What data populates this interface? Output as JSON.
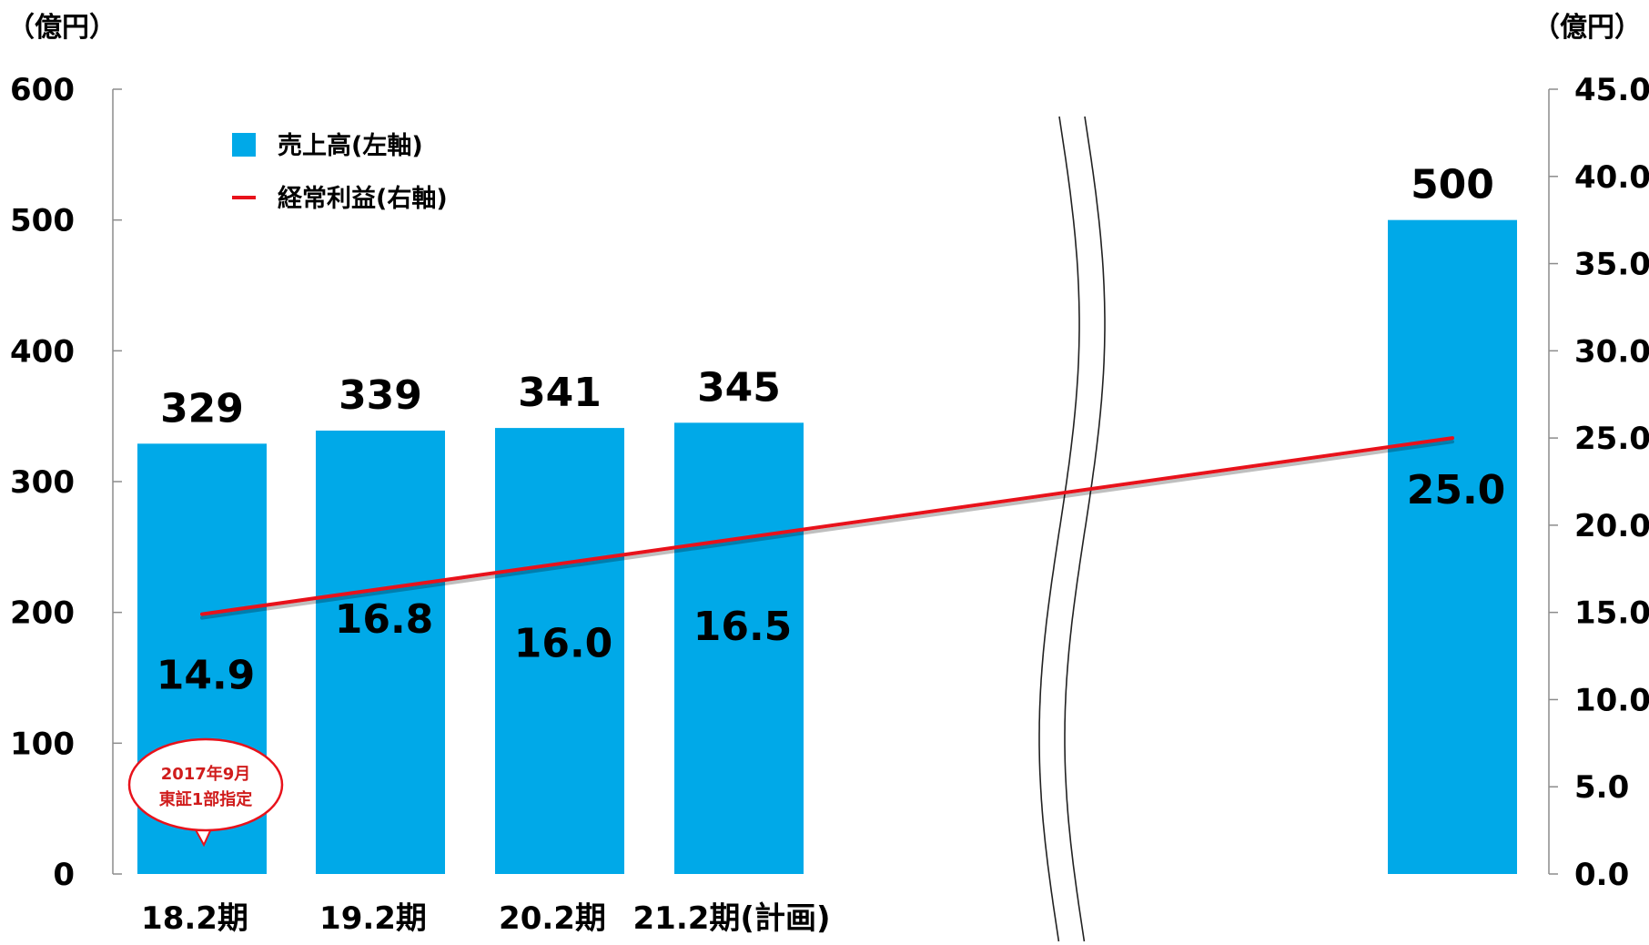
{
  "chart_data": {
    "type": "bar",
    "categories": [
      "18.2期",
      "19.2期",
      "20.2期",
      "21.2期(計画)",
      ""
    ],
    "series": [
      {
        "name": "売上高(左軸)",
        "type": "bar",
        "axis": "left",
        "values": [
          329,
          339,
          341,
          345,
          500
        ],
        "labels": [
          "329",
          "339",
          "341",
          "345",
          "500"
        ]
      },
      {
        "name": "経常利益(右軸)",
        "type": "line",
        "axis": "right",
        "values": [
          14.9,
          16.8,
          16.0,
          16.5,
          25.0
        ],
        "labels": [
          "14.9",
          "16.8",
          "16.0",
          "16.5",
          "25.0"
        ]
      }
    ],
    "left_axis": {
      "unit": "（億円）",
      "ylim": [
        0,
        600
      ],
      "ticks": [
        "0",
        "100",
        "200",
        "300",
        "400",
        "500",
        "600"
      ]
    },
    "right_axis": {
      "unit": "（億円）",
      "ylim": [
        0,
        45
      ],
      "ticks": [
        "0.0",
        "5.0",
        "10.0",
        "15.0",
        "20.0",
        "25.0",
        "30.0",
        "35.0",
        "40.0",
        "45.0"
      ]
    },
    "axis_break": "between 21.2期(計画) and the final bar",
    "annotation": {
      "lines": [
        "2017年9月",
        "東証1部指定"
      ],
      "attached_to": "18.2期"
    },
    "legend_position": "top-left",
    "grid": false,
    "colors": {
      "bar": "#00a9e8",
      "line": "#e8121b",
      "annotation_border": "#e8121b",
      "annotation_text": "#d01c1c"
    }
  }
}
